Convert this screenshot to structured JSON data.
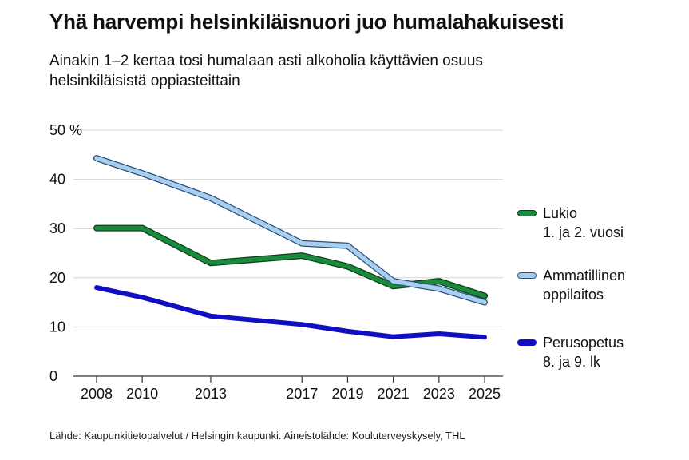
{
  "title": "Yhä harvempi helsinkiläisnuori juo humalahakuisesti",
  "subtitle": "Ainakin 1–2 kertaa tosi humalaan asti alkoholia käyttävien osuus helsinkiläisistä oppiasteittain",
  "source": "Lähde: Kaupunkitietopalvelut / Helsingin kaupunki. Aineistolähde: Kouluterveyskysely, THL",
  "chart_data": {
    "type": "line",
    "x": [
      2008,
      2010,
      2013,
      2017,
      2019,
      2021,
      2023,
      2025
    ],
    "xticks": [
      "2008",
      "2010",
      "2013",
      "2017",
      "2019",
      "2021",
      "2023",
      "2025"
    ],
    "yticks": [
      "0",
      "10",
      "20",
      "30",
      "40",
      "50 %"
    ],
    "ylim": [
      0,
      50
    ],
    "grid": true,
    "legend_position": "right",
    "series": [
      {
        "name_lines": [
          "Lukio",
          "1. ja 2. vuosi"
        ],
        "color": "#1a8a3c",
        "outline": "#0d3d1b",
        "values": [
          30.1,
          30.1,
          23.0,
          24.5,
          22.3,
          18.3,
          19.3,
          16.3
        ]
      },
      {
        "name_lines": [
          "Ammatillinen",
          "oppilaitos"
        ],
        "color": "#a9cff0",
        "outline": "#2c4f7a",
        "values": [
          44.3,
          41.2,
          36.2,
          27.0,
          26.5,
          19.3,
          17.8,
          15.0
        ]
      },
      {
        "name_lines": [
          "Perusopetus",
          "8. ja 9. lk"
        ],
        "color": "#1010c0",
        "outline": "#1010c0",
        "values": [
          18.0,
          16.0,
          12.2,
          10.5,
          9.1,
          8.0,
          8.6,
          7.9
        ]
      }
    ]
  }
}
